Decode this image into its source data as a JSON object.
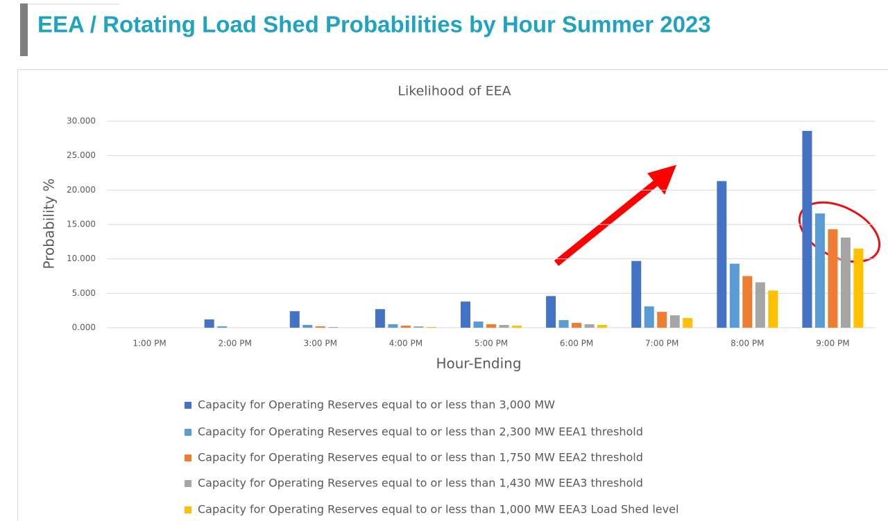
{
  "page_title": "EEA / Rotating Load Shed Probabilities by Hour Summer 2023",
  "chart_data": {
    "type": "bar",
    "title": "Likelihood of EEA",
    "x_label": "Hour-Ending",
    "y_label": "Probability %",
    "categories": [
      "1:00 PM",
      "2:00 PM",
      "3:00 PM",
      "4:00 PM",
      "5:00 PM",
      "6:00 PM",
      "7:00 PM",
      "8:00 PM",
      "9:00 PM"
    ],
    "series": [
      {
        "name": "Capacity for Operating Reserves equal to or less than 3,000 MW",
        "color": "#4472c4",
        "values": [
          0,
          1.2,
          2.4,
          2.7,
          3.8,
          4.6,
          9.7,
          21.3,
          28.6
        ]
      },
      {
        "name": "Capacity for Operating Reserves equal to or less than 2,300 MW EEA1 threshold",
        "color": "#5b9bd5",
        "values": [
          0,
          0.2,
          0.4,
          0.5,
          0.9,
          1.1,
          3.1,
          9.3,
          16.6
        ]
      },
      {
        "name": "Capacity for Operating Reserves equal to or less than 1,750 MW EEA2 threshold",
        "color": "#ed7d31",
        "values": [
          0,
          0,
          0.2,
          0.3,
          0.5,
          0.7,
          2.3,
          7.5,
          14.3
        ]
      },
      {
        "name": "Capacity for Operating Reserves equal to or less than 1,430 MW EEA3 threshold",
        "color": "#a5a5a5",
        "values": [
          0,
          0,
          0.1,
          0.2,
          0.4,
          0.5,
          1.8,
          6.6,
          13.1
        ]
      },
      {
        "name": "Capacity for Operating Reserves equal to or less than 1,000 MW EEA3 Load Shed level",
        "color": "#ffc000",
        "values": [
          0,
          0,
          0,
          0.1,
          0.3,
          0.4,
          1.4,
          5.4,
          11.5
        ]
      }
    ],
    "ylim": [
      0,
      30
    ],
    "yticks": [
      {
        "value": 0,
        "label": "0.000"
      },
      {
        "value": 5,
        "label": "5.000"
      },
      {
        "value": 10,
        "label": "10.000"
      },
      {
        "value": 15,
        "label": "15.000"
      },
      {
        "value": 20,
        "label": "20.000"
      },
      {
        "value": 25,
        "label": "25.000"
      },
      {
        "value": 30,
        "label": "30.000"
      }
    ],
    "grid": true,
    "legend": "bottom"
  }
}
